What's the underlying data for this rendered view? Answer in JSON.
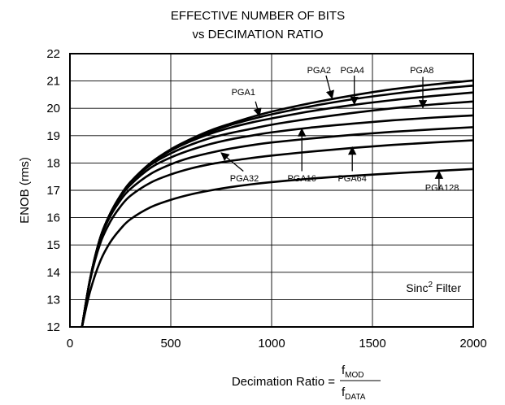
{
  "chart_data": {
    "type": "line",
    "title": "EFFECTIVE NUMBER OF BITS",
    "subtitle": "vs DECIMATION RATIO",
    "ylabel": "ENOB (rms)",
    "xlabel": {
      "prefix": "Decimation Ratio =",
      "numerator": "f",
      "numerator_sub": "MOD",
      "denominator": "f",
      "denominator_sub": "DATA"
    },
    "xlim": [
      0,
      2000
    ],
    "ylim": [
      12,
      22
    ],
    "xticks": [
      "0",
      "500",
      "1000",
      "1500",
      "2000"
    ],
    "yticks": [
      "12",
      "13",
      "14",
      "15",
      "16",
      "17",
      "18",
      "19",
      "20",
      "21",
      "22"
    ],
    "grid": true,
    "annotation": {
      "text": "Sinc",
      "sup": "2",
      "suffix": " Filter"
    },
    "x": [
      60,
      100,
      150,
      200,
      250,
      300,
      400,
      500,
      600,
      700,
      800,
      900,
      1000,
      1200,
      1400,
      1600,
      1800,
      2000
    ],
    "series": [
      {
        "name": "PGA1",
        "values": [
          12,
          13.75,
          15.25,
          16.15,
          16.8,
          17.3,
          18.0,
          18.5,
          18.88,
          19.2,
          19.45,
          19.68,
          19.88,
          20.2,
          20.47,
          20.7,
          20.87,
          21.02
        ]
      },
      {
        "name": "PGA2",
        "values": [
          12,
          13.75,
          15.25,
          16.15,
          16.8,
          17.3,
          18.0,
          18.48,
          18.85,
          19.15,
          19.4,
          19.6,
          19.78,
          20.08,
          20.33,
          20.53,
          20.7,
          20.83
        ]
      },
      {
        "name": "PGA4",
        "values": [
          12,
          13.75,
          15.25,
          16.15,
          16.8,
          17.3,
          17.98,
          18.45,
          18.8,
          19.08,
          19.3,
          19.48,
          19.63,
          19.9,
          20.12,
          20.3,
          20.45,
          20.58
        ]
      },
      {
        "name": "PGA8",
        "values": [
          12,
          13.75,
          15.25,
          16.15,
          16.78,
          17.27,
          17.93,
          18.35,
          18.67,
          18.92,
          19.1,
          19.25,
          19.4,
          19.63,
          19.83,
          20.0,
          20.14,
          20.25
        ]
      },
      {
        "name": "PGA16",
        "values": [
          12,
          13.75,
          15.25,
          16.15,
          16.75,
          17.2,
          17.82,
          18.2,
          18.48,
          18.7,
          18.87,
          19.0,
          19.12,
          19.3,
          19.44,
          19.56,
          19.66,
          19.74
        ]
      },
      {
        "name": "PGA32",
        "values": [
          12,
          13.75,
          15.2,
          16.05,
          16.63,
          17.05,
          17.6,
          17.95,
          18.2,
          18.38,
          18.53,
          18.65,
          18.75,
          18.9,
          19.03,
          19.14,
          19.23,
          19.31
        ]
      },
      {
        "name": "PGA64",
        "values": [
          12,
          13.7,
          15.05,
          15.85,
          16.4,
          16.8,
          17.28,
          17.58,
          17.8,
          17.96,
          18.08,
          18.18,
          18.27,
          18.42,
          18.55,
          18.66,
          18.75,
          18.83
        ]
      },
      {
        "name": "PGA128",
        "values": [
          12,
          13.3,
          14.4,
          15.1,
          15.58,
          15.94,
          16.38,
          16.65,
          16.85,
          17.0,
          17.12,
          17.22,
          17.3,
          17.43,
          17.53,
          17.62,
          17.7,
          17.78
        ]
      }
    ],
    "callouts": [
      {
        "label": "PGA1",
        "label_at": [
          860,
          20.6
        ],
        "arrow_from": [
          920,
          20.25
        ],
        "arrow_to": [
          940,
          19.72
        ]
      },
      {
        "label": "PGA2",
        "label_at": [
          1235,
          21.4
        ],
        "arrow_from": [
          1270,
          21.2
        ],
        "arrow_to": [
          1300,
          20.37
        ]
      },
      {
        "label": "PGA4",
        "label_at": [
          1400,
          21.4
        ],
        "arrow_from": [
          1410,
          21.2
        ],
        "arrow_to": [
          1410,
          20.15
        ]
      },
      {
        "label": "PGA8",
        "label_at": [
          1745,
          21.4
        ],
        "arrow_from": [
          1750,
          21.15
        ],
        "arrow_to": [
          1750,
          20.02
        ]
      },
      {
        "label": "PGA16",
        "label_at": [
          1150,
          17.45
        ],
        "arrow_from": [
          1150,
          17.7
        ],
        "arrow_to": [
          1150,
          19.25
        ]
      },
      {
        "label": "PGA32",
        "label_at": [
          865,
          17.45
        ],
        "arrow_from": [
          860,
          17.7
        ],
        "arrow_to": [
          750,
          18.37
        ]
      },
      {
        "label": "PGA64",
        "label_at": [
          1400,
          17.45
        ],
        "arrow_from": [
          1400,
          17.7
        ],
        "arrow_to": [
          1400,
          18.58
        ]
      },
      {
        "label": "PGA128",
        "label_at": [
          1845,
          17.1
        ],
        "arrow_from": [
          1830,
          17.0
        ],
        "arrow_to": [
          1830,
          17.7
        ]
      }
    ]
  }
}
